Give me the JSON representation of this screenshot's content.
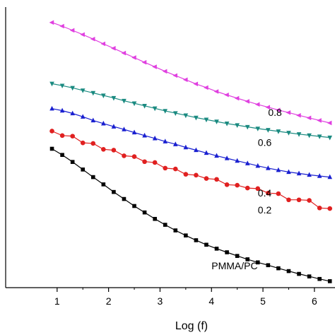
{
  "chart_data": {
    "type": "line",
    "xlabel": "Log (f)",
    "ylabel": "",
    "xlim": [
      0.0,
      6.4
    ],
    "ylim": [
      0.0,
      1.0
    ],
    "x_ticks": [
      1,
      2,
      3,
      4,
      5,
      6
    ],
    "x_tick_labels": [
      "1",
      "2",
      "3",
      "4",
      "5",
      "6"
    ],
    "grid": false,
    "series": [
      {
        "name": "0.8",
        "color": "#e040e0",
        "marker": "triangle-left",
        "x": [
          0.9,
          1.1,
          1.3,
          1.5,
          1.7,
          1.9,
          2.1,
          2.3,
          2.5,
          2.7,
          2.9,
          3.1,
          3.3,
          3.5,
          3.7,
          3.9,
          4.1,
          4.3,
          4.5,
          4.7,
          4.9,
          5.1,
          5.3,
          5.5,
          5.7,
          5.9,
          6.1,
          6.3
        ],
        "y": [
          0.945,
          0.932,
          0.917,
          0.902,
          0.886,
          0.869,
          0.853,
          0.836,
          0.82,
          0.803,
          0.787,
          0.771,
          0.756,
          0.741,
          0.726,
          0.713,
          0.699,
          0.687,
          0.675,
          0.664,
          0.653,
          0.643,
          0.633,
          0.624,
          0.614,
          0.605,
          0.596,
          0.587
        ]
      },
      {
        "name": "0.6",
        "color": "#1a8a80",
        "marker": "triangle-down",
        "x": [
          0.9,
          1.1,
          1.3,
          1.5,
          1.7,
          1.9,
          2.1,
          2.3,
          2.5,
          2.7,
          2.9,
          3.1,
          3.3,
          3.5,
          3.7,
          3.9,
          4.1,
          4.3,
          4.5,
          4.7,
          4.9,
          5.1,
          5.3,
          5.5,
          5.7,
          5.9,
          6.1,
          6.3
        ],
        "y": [
          0.727,
          0.72,
          0.712,
          0.703,
          0.694,
          0.685,
          0.676,
          0.666,
          0.657,
          0.648,
          0.639,
          0.63,
          0.622,
          0.614,
          0.606,
          0.599,
          0.592,
          0.585,
          0.579,
          0.573,
          0.567,
          0.562,
          0.557,
          0.552,
          0.547,
          0.543,
          0.539,
          0.535
        ]
      },
      {
        "name": "0.4",
        "color": "#1a20d0",
        "marker": "triangle-up",
        "x": [
          0.9,
          1.1,
          1.3,
          1.5,
          1.7,
          1.9,
          2.1,
          2.3,
          2.5,
          2.7,
          2.9,
          3.1,
          3.3,
          3.5,
          3.7,
          3.9,
          4.1,
          4.3,
          4.5,
          4.7,
          4.9,
          5.1,
          5.3,
          5.5,
          5.7,
          5.9,
          6.1,
          6.3
        ],
        "y": [
          0.638,
          0.631,
          0.621,
          0.609,
          0.596,
          0.585,
          0.574,
          0.564,
          0.553,
          0.542,
          0.532,
          0.521,
          0.511,
          0.5,
          0.49,
          0.48,
          0.47,
          0.461,
          0.452,
          0.443,
          0.434,
          0.426,
          0.419,
          0.412,
          0.407,
          0.402,
          0.398,
          0.394
        ]
      },
      {
        "name": "0.2",
        "color": "#e02020",
        "marker": "circle",
        "x": [
          0.9,
          1.1,
          1.3,
          1.5,
          1.7,
          1.9,
          2.1,
          2.3,
          2.5,
          2.7,
          2.9,
          3.1,
          3.3,
          3.5,
          3.7,
          3.9,
          4.1,
          4.3,
          4.5,
          4.7,
          4.9,
          5.1,
          5.3,
          5.5,
          5.7,
          5.9,
          6.1,
          6.3
        ],
        "y": [
          0.558,
          0.542,
          0.54,
          0.516,
          0.514,
          0.493,
          0.49,
          0.47,
          0.467,
          0.449,
          0.446,
          0.426,
          0.423,
          0.404,
          0.401,
          0.389,
          0.386,
          0.367,
          0.365,
          0.355,
          0.353,
          0.337,
          0.335,
          0.313,
          0.313,
          0.311,
          0.284,
          0.282
        ]
      },
      {
        "name": "PMMA/PC",
        "color": "#000000",
        "marker": "square",
        "x": [
          0.9,
          1.1,
          1.3,
          1.5,
          1.7,
          1.9,
          2.1,
          2.3,
          2.5,
          2.7,
          2.9,
          3.1,
          3.3,
          3.5,
          3.7,
          3.9,
          4.1,
          4.3,
          4.5,
          4.7,
          4.9,
          5.1,
          5.3,
          5.5,
          5.7,
          5.9,
          6.1,
          6.3
        ],
        "y": [
          0.495,
          0.473,
          0.448,
          0.421,
          0.394,
          0.368,
          0.341,
          0.316,
          0.291,
          0.268,
          0.245,
          0.224,
          0.204,
          0.186,
          0.169,
          0.153,
          0.139,
          0.126,
          0.113,
          0.101,
          0.09,
          0.08,
          0.069,
          0.059,
          0.049,
          0.04,
          0.031,
          0.023
        ]
      }
    ],
    "annotations": [
      {
        "text": "0.8",
        "x": 5.1,
        "y": 0.612
      },
      {
        "text": "0.6",
        "x": 4.9,
        "y": 0.505
      },
      {
        "text": "0.4",
        "x": 4.9,
        "y": 0.325
      },
      {
        "text": "0.2",
        "x": 4.9,
        "y": 0.265
      },
      {
        "text": "PMMA/PC",
        "x": 4.0,
        "y": 0.065
      }
    ]
  }
}
